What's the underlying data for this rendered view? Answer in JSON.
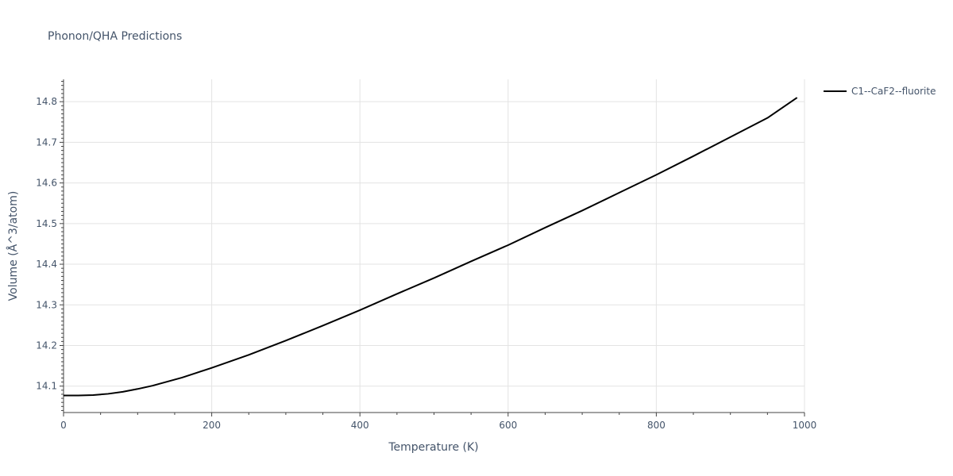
{
  "chart_data": {
    "type": "line",
    "title": "Phonon/QHA Predictions",
    "xlabel": "Temperature (K)",
    "ylabel": "Volume (Å^3/atom)",
    "xlim": [
      0,
      1000
    ],
    "ylim": [
      14.035,
      14.855
    ],
    "x_ticks": [
      0,
      200,
      400,
      600,
      800,
      1000
    ],
    "y_ticks": [
      14.1,
      14.2,
      14.3,
      14.4,
      14.5,
      14.6,
      14.7,
      14.8
    ],
    "x_tick_labels": [
      "0",
      "200",
      "400",
      "600",
      "800",
      "1000"
    ],
    "y_tick_labels": [
      "14.1",
      "14.2",
      "14.3",
      "14.4",
      "14.5",
      "14.6",
      "14.7",
      "14.8"
    ],
    "grid": true,
    "legend_position": "top-right",
    "series": [
      {
        "name": "C1--CaF2--fluorite",
        "color": "#000000",
        "x": [
          0,
          20,
          40,
          60,
          80,
          100,
          120,
          140,
          160,
          180,
          200,
          250,
          300,
          350,
          400,
          450,
          500,
          550,
          600,
          650,
          700,
          750,
          800,
          850,
          900,
          950,
          990
        ],
        "y": [
          14.077,
          14.077,
          14.078,
          14.081,
          14.086,
          14.093,
          14.101,
          14.111,
          14.121,
          14.133,
          14.145,
          14.177,
          14.212,
          14.249,
          14.287,
          14.327,
          14.366,
          14.407,
          14.447,
          14.49,
          14.532,
          14.576,
          14.62,
          14.666,
          14.713,
          14.76,
          14.81
        ]
      }
    ]
  }
}
